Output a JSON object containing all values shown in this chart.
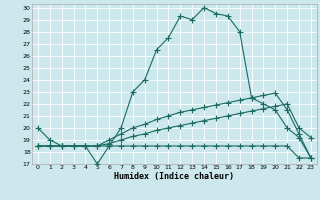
{
  "xlabel": "Humidex (Indice chaleur)",
  "bg_color": "#cce8ec",
  "grid_color": "#ffffff",
  "line_color": "#1a6b60",
  "xlim": [
    -0.5,
    23.5
  ],
  "ylim": [
    17,
    30.3
  ],
  "xticks": [
    0,
    1,
    2,
    3,
    4,
    5,
    6,
    7,
    8,
    9,
    10,
    11,
    12,
    13,
    14,
    15,
    16,
    17,
    18,
    19,
    20,
    21,
    22,
    23
  ],
  "yticks": [
    17,
    18,
    19,
    20,
    21,
    22,
    23,
    24,
    25,
    26,
    27,
    28,
    29,
    30
  ],
  "line1_x": [
    0,
    1,
    2,
    3,
    4,
    5,
    6,
    7,
    8,
    9,
    10,
    11,
    12,
    13,
    14,
    15,
    16,
    17,
    18,
    19,
    20,
    21,
    22,
    23
  ],
  "line1_y": [
    20,
    19,
    18.5,
    18.5,
    18.5,
    17,
    18.5,
    20,
    23,
    24,
    26.5,
    27.5,
    29.3,
    29,
    30,
    29.5,
    29.3,
    28,
    22.5,
    22,
    21.5,
    20,
    19.2,
    17.5
  ],
  "line2_x": [
    0,
    1,
    2,
    3,
    4,
    5,
    6,
    7,
    8,
    9,
    10,
    11,
    12,
    13,
    14,
    15,
    16,
    17,
    18,
    19,
    20,
    21,
    22,
    23
  ],
  "line2_y": [
    18.5,
    18.5,
    18.5,
    18.5,
    18.5,
    18.5,
    18.5,
    18.5,
    18.5,
    18.5,
    18.5,
    18.5,
    18.5,
    18.5,
    18.5,
    18.5,
    18.5,
    18.5,
    18.5,
    18.5,
    18.5,
    18.5,
    17.5,
    17.5
  ],
  "line3_x": [
    0,
    1,
    2,
    3,
    4,
    5,
    6,
    7,
    8,
    9,
    10,
    11,
    12,
    13,
    14,
    15,
    16,
    17,
    18,
    19,
    20,
    21,
    22,
    23
  ],
  "line3_y": [
    18.5,
    18.5,
    18.5,
    18.5,
    18.5,
    18.5,
    18.7,
    19,
    19.3,
    19.5,
    19.8,
    20,
    20.2,
    20.4,
    20.6,
    20.8,
    21,
    21.2,
    21.4,
    21.6,
    21.8,
    22,
    20,
    19.2
  ],
  "line4_x": [
    0,
    1,
    2,
    3,
    4,
    5,
    6,
    7,
    8,
    9,
    10,
    11,
    12,
    13,
    14,
    15,
    16,
    17,
    18,
    19,
    20,
    21,
    22,
    23
  ],
  "line4_y": [
    18.5,
    18.5,
    18.5,
    18.5,
    18.5,
    18.5,
    19,
    19.5,
    20,
    20.3,
    20.7,
    21,
    21.3,
    21.5,
    21.7,
    21.9,
    22.1,
    22.3,
    22.5,
    22.7,
    22.9,
    21.5,
    19.5,
    17.5
  ]
}
